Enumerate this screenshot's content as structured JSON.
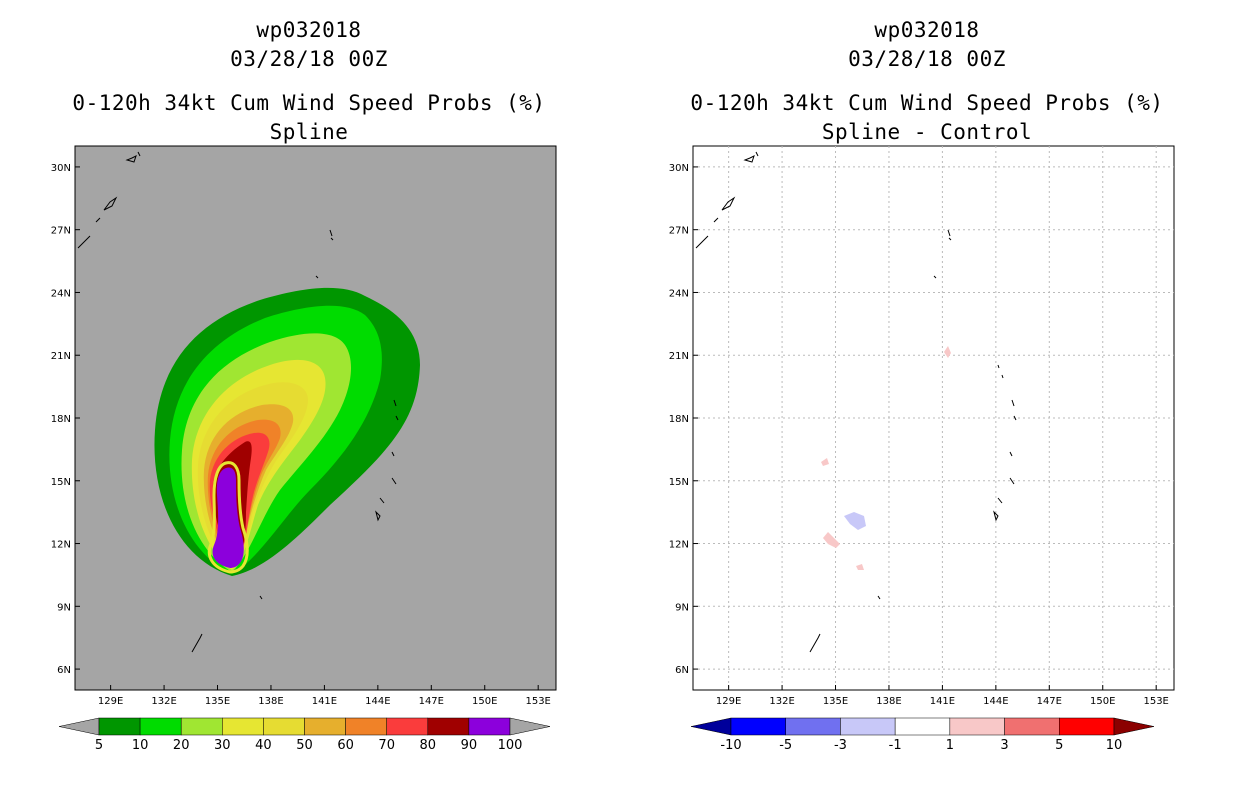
{
  "chart_data": [
    {
      "type": "contour-map",
      "storm_id": "wp032018",
      "datetime": "03/28/18 00Z",
      "title": "0-120h 34kt Cum Wind Speed Probs (%)",
      "subtitle": "Spline",
      "x_ticks": [
        "129E",
        "132E",
        "135E",
        "138E",
        "141E",
        "144E",
        "147E",
        "150E",
        "153E"
      ],
      "y_ticks": [
        "30N",
        "27N",
        "24N",
        "21N",
        "18N",
        "15N",
        "12N",
        "9N",
        "6N"
      ],
      "lon_range": [
        127,
        154
      ],
      "lat_range": [
        5,
        31
      ],
      "grid": false,
      "colorbar": {
        "labels": [
          "5",
          "10",
          "20",
          "30",
          "40",
          "50",
          "60",
          "70",
          "80",
          "90",
          "100"
        ],
        "colors": [
          "#009600",
          "#00dc00",
          "#a0e632",
          "#e6e632",
          "#e6dc32",
          "#e6af2d",
          "#f08228",
          "#fa3c3c",
          "#a00000",
          "#8c00dc"
        ],
        "under_color": "#a5a5a5",
        "over_color": "#a5a5a5"
      },
      "background_color": "#a5a5a5"
    },
    {
      "type": "contour-map",
      "storm_id": "wp032018",
      "datetime": "03/28/18 00Z",
      "title": "0-120h 34kt Cum Wind Speed Probs (%)",
      "subtitle": "Spline - Control",
      "x_ticks": [
        "129E",
        "132E",
        "135E",
        "138E",
        "141E",
        "144E",
        "147E",
        "150E",
        "153E"
      ],
      "y_ticks": [
        "30N",
        "27N",
        "24N",
        "21N",
        "18N",
        "15N",
        "12N",
        "9N",
        "6N"
      ],
      "lon_range": [
        127,
        154
      ],
      "lat_range": [
        5,
        31
      ],
      "grid": true,
      "colorbar": {
        "labels": [
          "-10",
          "-5",
          "-3",
          "-1",
          "1",
          "3",
          "5",
          "10"
        ],
        "colors": [
          "#0000ff",
          "#7070f0",
          "#c8c8f8",
          "#ffffff",
          "#f8c8c8",
          "#f07070",
          "#ff0000"
        ],
        "under_color": "#00009b",
        "over_color": "#8b0000"
      },
      "background_color": "#ffffff"
    }
  ]
}
